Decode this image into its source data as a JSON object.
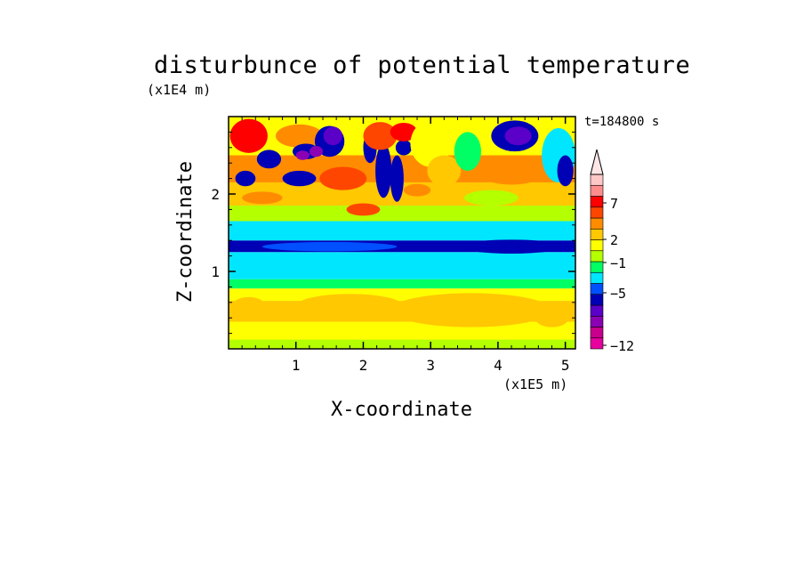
{
  "chart_data": {
    "type": "heatmap",
    "title": "disturbunce of potential temperature",
    "time_label": "t=184800 s",
    "xlabel": "X-coordinate",
    "ylabel": "Z-coordinate",
    "x_unit": "(x1E5 m)",
    "y_unit": "(x1E4 m)",
    "xlim": [
      0,
      5.15
    ],
    "ylim": [
      0,
      3.0
    ],
    "x_ticks": [
      1,
      2,
      3,
      4,
      5
    ],
    "y_ticks": [
      1,
      2
    ],
    "colorbar": {
      "colors": [
        "#e6009e",
        "#c8008c",
        "#8c00b4",
        "#5a00c8",
        "#0000b4",
        "#0050ff",
        "#00e6ff",
        "#00ff64",
        "#b4ff00",
        "#ffff00",
        "#ffc800",
        "#ff8c00",
        "#ff4600",
        "#ff0000",
        "#ff8c8c",
        "#ffc8c8"
      ],
      "arrow_color": "#ffe6e6",
      "tick_labels": [
        "7",
        "2",
        "−1",
        "−5",
        "−12"
      ]
    },
    "field_bands": [
      {
        "z": [
          0.0,
          0.12
        ],
        "level": 8
      },
      {
        "z": [
          0.12,
          0.35
        ],
        "level": 9
      },
      {
        "z": [
          0.35,
          0.62
        ],
        "level": 10
      },
      {
        "z": [
          0.62,
          0.78
        ],
        "level": 9
      },
      {
        "z": [
          0.78,
          0.9
        ],
        "level": 7
      },
      {
        "z": [
          0.9,
          1.25
        ],
        "level": 6
      },
      {
        "z": [
          1.25,
          1.4
        ],
        "level": 4
      },
      {
        "z": [
          1.4,
          1.65
        ],
        "level": 6
      },
      {
        "z": [
          1.65,
          1.85
        ],
        "level": 8
      },
      {
        "z": [
          1.85,
          2.15
        ],
        "level": 10
      },
      {
        "z": [
          2.15,
          2.5
        ],
        "level": 11
      },
      {
        "z": [
          2.5,
          3.0
        ],
        "level": 9
      }
    ],
    "field_blobs": [
      {
        "x": 4.2,
        "z": 1.32,
        "rx": 0.75,
        "rz": 0.09,
        "level": 4
      },
      {
        "x": 1.5,
        "z": 1.32,
        "rx": 1.0,
        "rz": 0.06,
        "level": 5
      },
      {
        "x": 3.6,
        "z": 0.5,
        "rx": 1.2,
        "rz": 0.22,
        "level": 10
      },
      {
        "x": 1.8,
        "z": 0.55,
        "rx": 0.8,
        "rz": 0.16,
        "level": 10
      },
      {
        "x": 0.3,
        "z": 2.75,
        "rx": 0.28,
        "rz": 0.22,
        "level": 13
      },
      {
        "x": 0.25,
        "z": 2.2,
        "rx": 0.15,
        "rz": 0.1,
        "level": 4
      },
      {
        "x": 0.6,
        "z": 2.45,
        "rx": 0.18,
        "rz": 0.12,
        "level": 4
      },
      {
        "x": 1.05,
        "z": 2.75,
        "rx": 0.35,
        "rz": 0.15,
        "level": 11
      },
      {
        "x": 1.05,
        "z": 2.2,
        "rx": 0.25,
        "rz": 0.1,
        "level": 4
      },
      {
        "x": 1.15,
        "z": 2.55,
        "rx": 0.2,
        "rz": 0.1,
        "level": 4
      },
      {
        "x": 1.5,
        "z": 2.68,
        "rx": 0.22,
        "rz": 0.2,
        "level": 4
      },
      {
        "x": 1.55,
        "z": 2.75,
        "rx": 0.14,
        "rz": 0.12,
        "level": 3
      },
      {
        "x": 1.3,
        "z": 2.55,
        "rx": 0.1,
        "rz": 0.07,
        "level": 2
      },
      {
        "x": 1.1,
        "z": 2.5,
        "rx": 0.1,
        "rz": 0.06,
        "level": 2
      },
      {
        "x": 1.7,
        "z": 2.2,
        "rx": 0.35,
        "rz": 0.15,
        "level": 12
      },
      {
        "x": 2.0,
        "z": 1.8,
        "rx": 0.25,
        "rz": 0.08,
        "level": 12
      },
      {
        "x": 2.3,
        "z": 2.3,
        "rx": 0.12,
        "rz": 0.35,
        "level": 4
      },
      {
        "x": 2.5,
        "z": 2.2,
        "rx": 0.1,
        "rz": 0.3,
        "level": 4
      },
      {
        "x": 2.1,
        "z": 2.6,
        "rx": 0.1,
        "rz": 0.2,
        "level": 4
      },
      {
        "x": 2.6,
        "z": 2.6,
        "rx": 0.12,
        "rz": 0.1,
        "level": 4
      },
      {
        "x": 2.25,
        "z": 2.75,
        "rx": 0.25,
        "rz": 0.18,
        "level": 12
      },
      {
        "x": 2.6,
        "z": 2.8,
        "rx": 0.2,
        "rz": 0.12,
        "level": 13
      },
      {
        "x": 3.0,
        "z": 2.65,
        "rx": 0.3,
        "rz": 0.3,
        "level": 9
      },
      {
        "x": 3.2,
        "z": 2.3,
        "rx": 0.25,
        "rz": 0.2,
        "level": 10
      },
      {
        "x": 3.55,
        "z": 2.55,
        "rx": 0.2,
        "rz": 0.25,
        "level": 7
      },
      {
        "x": 4.25,
        "z": 2.75,
        "rx": 0.35,
        "rz": 0.2,
        "level": 4
      },
      {
        "x": 4.3,
        "z": 2.75,
        "rx": 0.2,
        "rz": 0.12,
        "level": 3
      },
      {
        "x": 4.2,
        "z": 2.3,
        "rx": 0.5,
        "rz": 0.18,
        "level": 11
      },
      {
        "x": 4.9,
        "z": 2.5,
        "rx": 0.25,
        "rz": 0.35,
        "level": 6
      },
      {
        "x": 5.0,
        "z": 2.3,
        "rx": 0.12,
        "rz": 0.2,
        "level": 4
      },
      {
        "x": 3.9,
        "z": 1.95,
        "rx": 0.4,
        "rz": 0.1,
        "level": 8
      },
      {
        "x": 2.8,
        "z": 2.05,
        "rx": 0.2,
        "rz": 0.08,
        "level": 11
      },
      {
        "x": 0.5,
        "z": 1.95,
        "rx": 0.3,
        "rz": 0.08,
        "level": 11
      },
      {
        "x": 4.8,
        "z": 0.4,
        "rx": 0.25,
        "rz": 0.12,
        "level": 10
      },
      {
        "x": 0.3,
        "z": 0.55,
        "rx": 0.25,
        "rz": 0.12,
        "level": 10
      }
    ]
  }
}
